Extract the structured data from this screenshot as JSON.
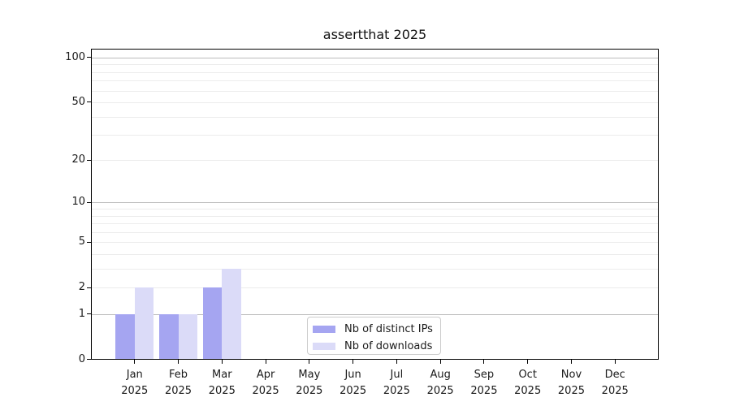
{
  "figure": {
    "title": "assertthat 2025"
  },
  "chart_data": {
    "type": "bar",
    "title": "assertthat 2025",
    "subtitle": "",
    "xlabel": "",
    "ylabel": "",
    "categories": [
      "Jan",
      "Feb",
      "Mar",
      "Apr",
      "May",
      "Jun",
      "Jul",
      "Aug",
      "Sep",
      "Oct",
      "Nov",
      "Dec"
    ],
    "category_year": "2025",
    "series": [
      {
        "name": "Nb of distinct IPs",
        "color": "#a5a5f1",
        "values": [
          1,
          1,
          2,
          0,
          0,
          0,
          0,
          0,
          0,
          0,
          0,
          0
        ]
      },
      {
        "name": "Nb of downloads",
        "color": "#dbdbf8",
        "values": [
          2,
          1,
          3,
          0,
          0,
          0,
          0,
          0,
          0,
          0,
          0,
          0
        ]
      }
    ],
    "yscale": "log1p",
    "ylim": [
      0,
      115
    ],
    "ytick_values": [
      0,
      1,
      2,
      5,
      10,
      20,
      50,
      100
    ],
    "grid_major_values": [
      1,
      10,
      100
    ],
    "grid_minor_values": [
      2,
      3,
      4,
      5,
      6,
      7,
      8,
      9,
      20,
      30,
      40,
      50,
      60,
      70,
      80,
      90
    ],
    "grid_on": true,
    "legend_position": "bottom-center",
    "colors": {
      "spine": "#000000",
      "grid_major": "#bcbcbc",
      "grid_minor": "#ececec",
      "text": "#1a1a1a",
      "background": "#ffffff"
    }
  }
}
